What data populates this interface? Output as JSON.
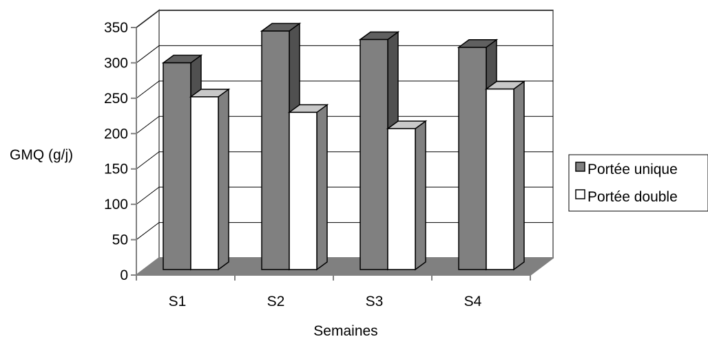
{
  "chart_data": {
    "type": "bar",
    "variant": "3d-clustered-column",
    "title": "",
    "xlabel": "Semaines",
    "ylabel": "GMQ (g/j)",
    "ylim": [
      0,
      350
    ],
    "yticks": [
      0,
      50,
      100,
      150,
      200,
      250,
      300,
      350
    ],
    "grid": true,
    "legend_position": "right",
    "categories": [
      "S1",
      "S2",
      "S3",
      "S4"
    ],
    "series": [
      {
        "name": "Portée unique",
        "values": [
          300,
          345,
          333,
          322
        ],
        "color": "#808080"
      },
      {
        "name": "Portée double",
        "values": [
          252,
          230,
          207,
          263
        ],
        "color": "#ffffff"
      }
    ]
  }
}
